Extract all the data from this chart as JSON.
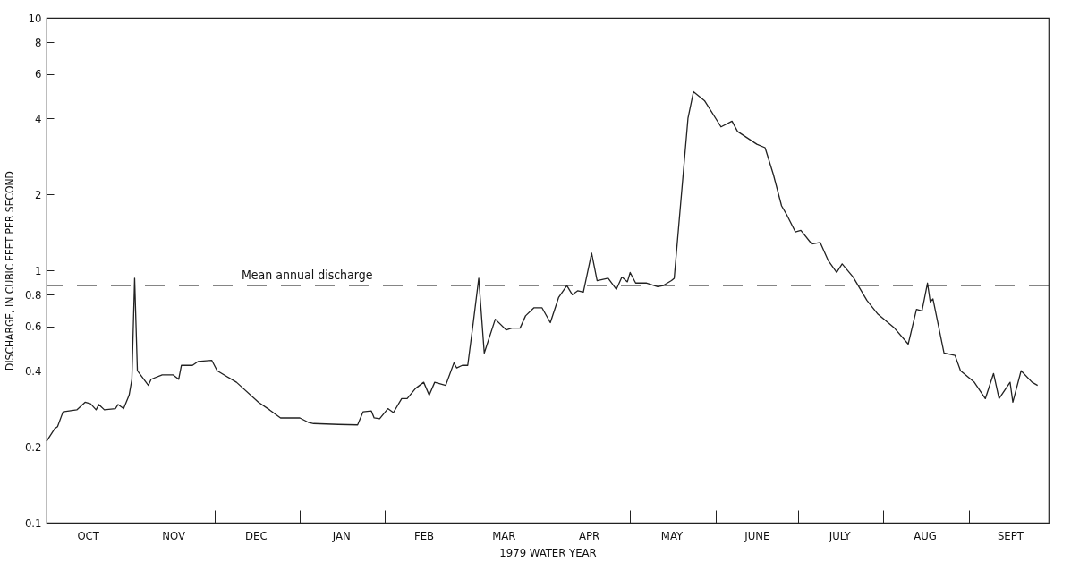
{
  "chart_data": {
    "type": "line",
    "xlabel": "1979 WATER YEAR",
    "ylabel": "DISCHARGE, IN CUBIC FEET PER SECOND",
    "log": true,
    "x": [
      "1978-10-01",
      "1978-10-04",
      "1978-10-05",
      "1978-10-07",
      "1978-10-12",
      "1978-10-15",
      "1978-10-17",
      "1978-10-19",
      "1978-10-20",
      "1978-10-22",
      "1978-10-26",
      "1978-10-27",
      "1978-10-29",
      "1978-10-31",
      "1978-11-01",
      "1978-11-02",
      "1978-11-03",
      "1978-11-07",
      "1978-11-08",
      "1978-11-12",
      "1978-11-16",
      "1978-11-18",
      "1978-11-19",
      "1978-11-23",
      "1978-11-25",
      "1978-11-30",
      "1978-12-02",
      "1978-12-09",
      "1978-12-17",
      "1978-12-21",
      "1978-12-25",
      "1979-01-01",
      "1979-01-04",
      "1979-01-06",
      "1979-01-15",
      "1979-01-22",
      "1979-01-24",
      "1979-01-27",
      "1979-01-28",
      "1979-01-30",
      "1979-02-02",
      "1979-02-04",
      "1979-02-07",
      "1979-02-09",
      "1979-02-12",
      "1979-02-15",
      "1979-02-17",
      "1979-02-19",
      "1979-02-23",
      "1979-02-26",
      "1979-02-27",
      "1979-03-01",
      "1979-03-03",
      "1979-03-05",
      "1979-03-07",
      "1979-03-09",
      "1979-03-13",
      "1979-03-17",
      "1979-03-19",
      "1979-03-22",
      "1979-03-24",
      "1979-03-27",
      "1979-03-30",
      "1979-04-02",
      "1979-04-05",
      "1979-04-08",
      "1979-04-10",
      "1979-04-12",
      "1979-04-14",
      "1979-04-17",
      "1979-04-19",
      "1979-04-23",
      "1979-04-26",
      "1979-04-28",
      "1979-04-30",
      "1979-05-01",
      "1979-05-03",
      "1979-05-07",
      "1979-05-11",
      "1979-05-13",
      "1979-05-16",
      "1979-05-17",
      "1979-05-22",
      "1979-05-24",
      "1979-05-28",
      "1979-06-03",
      "1979-06-07",
      "1979-06-09",
      "1979-06-16",
      "1979-06-19",
      "1979-06-22",
      "1979-06-25",
      "1979-06-27",
      "1979-06-30",
      "1979-07-02",
      "1979-07-06",
      "1979-07-09",
      "1979-07-12",
      "1979-07-15",
      "1979-07-17",
      "1979-07-21",
      "1979-07-26",
      "1979-07-30",
      "1979-08-05",
      "1979-08-10",
      "1979-08-13",
      "1979-08-15",
      "1979-08-17",
      "1979-08-18",
      "1979-08-19",
      "1979-08-23",
      "1979-08-27",
      "1979-08-29",
      "1979-09-03",
      "1979-09-07",
      "1979-09-10",
      "1979-09-12",
      "1979-09-16",
      "1979-09-17",
      "1979-09-20",
      "1979-09-24",
      "1979-09-26"
    ],
    "values": [
      0.21,
      0.236,
      0.24,
      0.275,
      0.28,
      0.3,
      0.296,
      0.28,
      0.294,
      0.28,
      0.283,
      0.294,
      0.283,
      0.32,
      0.37,
      0.93,
      0.4,
      0.35,
      0.37,
      0.385,
      0.385,
      0.37,
      0.42,
      0.42,
      0.435,
      0.44,
      0.4,
      0.36,
      0.3,
      0.28,
      0.26,
      0.26,
      0.25,
      0.247,
      0.245,
      0.244,
      0.275,
      0.277,
      0.26,
      0.258,
      0.283,
      0.273,
      0.31,
      0.31,
      0.34,
      0.36,
      0.32,
      0.36,
      0.35,
      0.43,
      0.41,
      0.42,
      0.42,
      0.62,
      0.93,
      0.47,
      0.64,
      0.58,
      0.59,
      0.59,
      0.66,
      0.71,
      0.71,
      0.62,
      0.78,
      0.87,
      0.8,
      0.83,
      0.82,
      1.17,
      0.91,
      0.93,
      0.84,
      0.94,
      0.9,
      0.98,
      0.89,
      0.89,
      0.86,
      0.87,
      0.91,
      0.93,
      4.0,
      5.1,
      4.7,
      3.7,
      3.9,
      3.55,
      3.16,
      3.06,
      2.4,
      1.8,
      1.65,
      1.42,
      1.44,
      1.27,
      1.29,
      1.09,
      0.98,
      1.06,
      0.94,
      0.76,
      0.67,
      0.59,
      0.51,
      0.7,
      0.69,
      0.89,
      0.75,
      0.77,
      0.47,
      0.46,
      0.4,
      0.36,
      0.31,
      0.39,
      0.31,
      0.36,
      0.3,
      0.4,
      0.36,
      0.35
    ],
    "color": "#222222",
    "line_style": "solid",
    "xlim": [
      "1978-10-01",
      "1979-09-30"
    ],
    "xticks": [
      {
        "value": "1978-10-16",
        "label": "OCT"
      },
      {
        "value": "1978-11-01",
        "label": null
      },
      {
        "value": "1978-11-16",
        "label": "NOV"
      },
      {
        "value": "1978-12-01",
        "label": null
      },
      {
        "value": "1978-12-16",
        "label": "DEC"
      },
      {
        "value": "1979-01-01",
        "label": null
      },
      {
        "value": "1979-01-16",
        "label": "JAN"
      },
      {
        "value": "1979-02-01",
        "label": null
      },
      {
        "value": "1979-02-15",
        "label": "FEB"
      },
      {
        "value": "1979-03-01",
        "label": null
      },
      {
        "value": "1979-03-16",
        "label": "MAR"
      },
      {
        "value": "1979-04-01",
        "label": null
      },
      {
        "value": "1979-04-16",
        "label": "APR"
      },
      {
        "value": "1979-05-01",
        "label": null
      },
      {
        "value": "1979-05-16",
        "label": "MAY"
      },
      {
        "value": "1979-06-01",
        "label": null
      },
      {
        "value": "1979-06-16",
        "label": "JUNE"
      },
      {
        "value": "1979-07-01",
        "label": null
      },
      {
        "value": "1979-07-16",
        "label": "JULY"
      },
      {
        "value": "1979-08-01",
        "label": null
      },
      {
        "value": "1979-08-16",
        "label": "AUG"
      },
      {
        "value": "1979-09-01",
        "label": null
      },
      {
        "value": "1979-09-16",
        "label": "SEPT"
      }
    ],
    "ylim": [
      0.1,
      10
    ],
    "yticks": [
      0.1,
      0.2,
      0.4,
      0.6,
      0.8,
      1,
      2,
      4,
      6,
      8,
      10
    ],
    "ref_lines": [
      {
        "axis": "y",
        "value": 0.87,
        "label": "Mean annual discharge",
        "line_style": "dashed"
      }
    ]
  }
}
